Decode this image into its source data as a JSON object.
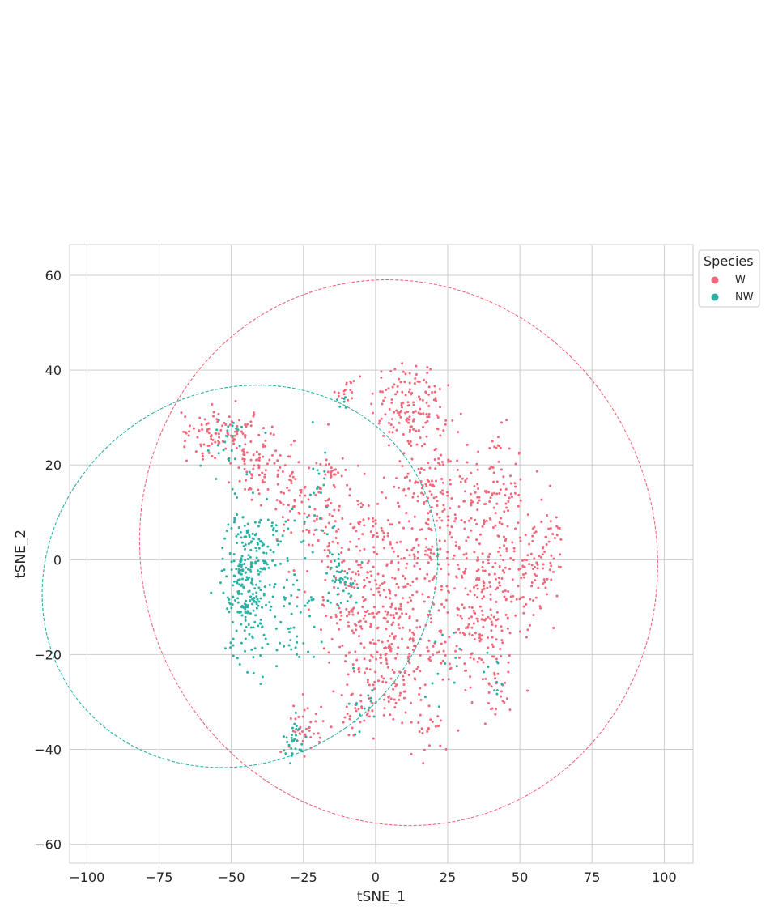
{
  "chart_data": {
    "type": "scatter",
    "title": "",
    "xlabel": "tSNE_1",
    "ylabel": "tSNE_2",
    "xlim": [
      -106,
      110
    ],
    "ylim": [
      -64,
      66.5
    ],
    "xticks": [
      -100,
      -75,
      -50,
      -25,
      0,
      25,
      50,
      75,
      100
    ],
    "yticks": [
      -60,
      -40,
      -20,
      0,
      20,
      40,
      60
    ],
    "xtick_labels": [
      "−100",
      "−75",
      "−50",
      "−25",
      "0",
      "25",
      "50",
      "75",
      "100"
    ],
    "ytick_labels": [
      "−60",
      "−40",
      "−20",
      "0",
      "20",
      "40",
      "60"
    ],
    "grid": true,
    "legend": {
      "title": "Species",
      "placement": "outside-top-right",
      "entries": [
        {
          "label": "W",
          "color": "#f2677b"
        },
        {
          "label": "NW",
          "color": "#2ab1a4"
        }
      ]
    },
    "series": [
      {
        "name": "W",
        "color": "#f2677b",
        "clusters": [
          {
            "cx": 10,
            "cy": 33,
            "sx": 6,
            "sy": 5,
            "n": 110
          },
          {
            "cx": 18,
            "cy": 30,
            "sx": 5,
            "sy": 5,
            "n": 40
          },
          {
            "cx": 40,
            "cy": 15,
            "sx": 6,
            "sy": 6,
            "n": 90
          },
          {
            "cx": 45,
            "cy": 0,
            "sx": 8,
            "sy": 8,
            "n": 130
          },
          {
            "cx": 58,
            "cy": 0,
            "sx": 4,
            "sy": 5,
            "n": 55
          },
          {
            "cx": 40,
            "cy": -15,
            "sx": 7,
            "sy": 6,
            "n": 90
          },
          {
            "cx": 30,
            "cy": -12,
            "sx": 7,
            "sy": 8,
            "n": 80
          },
          {
            "cx": 15,
            "cy": 0,
            "sx": 10,
            "sy": 12,
            "n": 220
          },
          {
            "cx": 5,
            "cy": -20,
            "sx": 8,
            "sy": 8,
            "n": 160
          },
          {
            "cx": -5,
            "cy": -5,
            "sx": 8,
            "sy": 10,
            "n": 180
          },
          {
            "cx": 20,
            "cy": 15,
            "sx": 6,
            "sy": 6,
            "n": 70
          },
          {
            "cx": -55,
            "cy": 27,
            "sx": 6,
            "sy": 2.5,
            "n": 90
          },
          {
            "cx": -43,
            "cy": 21,
            "sx": 4,
            "sy": 4,
            "n": 70
          },
          {
            "cx": -32,
            "cy": 16,
            "sx": 5,
            "sy": 5,
            "n": 50
          },
          {
            "cx": -20,
            "cy": 10,
            "sx": 6,
            "sy": 7,
            "n": 70
          },
          {
            "cx": -24,
            "cy": -35,
            "sx": 3,
            "sy": 3,
            "n": 40
          },
          {
            "cx": -5,
            "cy": -33,
            "sx": 4,
            "sy": 3,
            "n": 30
          },
          {
            "cx": 20,
            "cy": -35,
            "sx": 3,
            "sy": 3,
            "n": 20
          },
          {
            "cx": 42,
            "cy": -28,
            "sx": 2.5,
            "sy": 3,
            "n": 20
          },
          {
            "cx": -10,
            "cy": 35,
            "sx": 1.5,
            "sy": 1.5,
            "n": 15
          },
          {
            "cx": -15,
            "cy": 19,
            "sx": 1.5,
            "sy": 1.5,
            "n": 15
          }
        ],
        "ellipse": {
          "cx": 8,
          "cy": 1.5,
          "width": 178,
          "height": 116,
          "angle": 20
        }
      },
      {
        "name": "NW",
        "color": "#2ab1a4",
        "clusters": [
          {
            "cx": -45,
            "cy": -5,
            "sx": 4,
            "sy": 8,
            "n": 230
          },
          {
            "cx": -38,
            "cy": 2,
            "sx": 5,
            "sy": 6,
            "n": 70
          },
          {
            "cx": -28,
            "cy": -12,
            "sx": 4,
            "sy": 7,
            "n": 50
          },
          {
            "cx": -28,
            "cy": -38,
            "sx": 2,
            "sy": 2,
            "n": 30
          },
          {
            "cx": -12,
            "cy": -4,
            "sx": 3,
            "sy": 3,
            "n": 45
          },
          {
            "cx": -52,
            "cy": 25,
            "sx": 5,
            "sy": 3,
            "n": 25
          },
          {
            "cx": -20,
            "cy": 10,
            "sx": 4,
            "sy": 8,
            "n": 25
          },
          {
            "cx": -5,
            "cy": -30,
            "sx": 3,
            "sy": 4,
            "n": 15
          },
          {
            "cx": 28,
            "cy": -22,
            "sx": 4,
            "sy": 4,
            "n": 12
          },
          {
            "cx": 40,
            "cy": -24,
            "sx": 2,
            "sy": 2,
            "n": 10
          },
          {
            "cx": -11,
            "cy": 33,
            "sx": 1.5,
            "sy": 1.5,
            "n": 6
          }
        ],
        "ellipse": {
          "cx": -47,
          "cy": -3.5,
          "width": 128,
          "height": 86,
          "angle": -55
        }
      }
    ]
  }
}
